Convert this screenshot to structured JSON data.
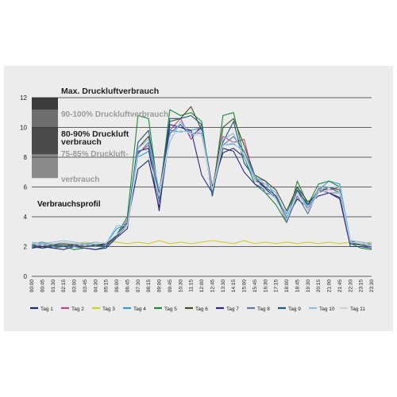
{
  "chart_data": {
    "type": "line",
    "ylabel_zones": [
      {
        "label": "Max. Druckluftverbrauch",
        "y_from": 10,
        "y_to": 12,
        "color": "#3a3a3a"
      },
      {
        "label": "90-100% Druckluftverbrauch",
        "y_from": 10,
        "y_to": 12,
        "color": "#8a8a8a"
      },
      {
        "label": "80-90% Druckluft verbrauch",
        "y_from": 8,
        "y_to": 10,
        "color": "#5a5a5a"
      },
      {
        "label": "75-85% Druckluft- verbrauch",
        "y_from": 6,
        "y_to": 8,
        "color": "#7d7d7d"
      }
    ],
    "zone_labels": {
      "max": "Max. Druckluftverbrauch",
      "z90": "90-100% Druckluftverbrauch",
      "z80a": "80-90% Druckluft",
      "z80b": "verbrauch",
      "z75a": "75-85% Druckluft-",
      "z75b": "verbrauch"
    },
    "profile_label": "Verbrauchsprofil",
    "ylim": [
      0,
      12
    ],
    "yticks": [
      0,
      2,
      4,
      6,
      8,
      10,
      12
    ],
    "grid": true,
    "categories": [
      "00:00",
      "00:45",
      "01:30",
      "02:15",
      "03:00",
      "03:45",
      "04:30",
      "05:15",
      "06:00",
      "06:45",
      "07:30",
      "08:15",
      "09:00",
      "09:45",
      "10:30",
      "11:15",
      "12:00",
      "12:45",
      "13:30",
      "14:15",
      "15:00",
      "15:45",
      "16:30",
      "17:15",
      "18:00",
      "18:45",
      "19:30",
      "20:15",
      "21:00",
      "21:45",
      "22:30",
      "23:15",
      "23:30"
    ],
    "legend_position": "bottom",
    "series": [
      {
        "name": "Tag 1",
        "color": "#1f2a6b",
        "values": [
          2.0,
          1.9,
          2.0,
          2.1,
          2.0,
          2.1,
          2.0,
          2.2,
          2.6,
          3.6,
          7.2,
          7.8,
          4.6,
          9.6,
          10.2,
          9.4,
          10.0,
          6.0,
          8.3,
          8.6,
          8.0,
          6.6,
          5.9,
          5.2,
          3.9,
          5.2,
          4.6,
          5.8,
          5.6,
          5.3,
          2.4,
          2.1,
          2.0
        ]
      },
      {
        "name": "Tag 2",
        "color": "#b04a8a",
        "values": [
          2.1,
          2.0,
          2.1,
          2.0,
          2.2,
          2.1,
          2.0,
          2.1,
          2.7,
          3.8,
          8.3,
          8.8,
          5.8,
          9.8,
          10.6,
          9.2,
          10.2,
          5.4,
          9.4,
          9.0,
          9.2,
          6.4,
          6.2,
          5.6,
          3.8,
          5.8,
          4.4,
          5.9,
          5.8,
          6.0,
          2.3,
          2.2,
          2.1
        ]
      },
      {
        "name": "Tag 3",
        "color": "#d4d020",
        "values": [
          2.2,
          2.3,
          2.2,
          2.3,
          2.2,
          2.3,
          2.2,
          2.3,
          2.3,
          2.2,
          2.3,
          2.2,
          2.4,
          2.2,
          2.3,
          2.2,
          2.3,
          2.4,
          2.3,
          2.2,
          2.4,
          2.2,
          2.3,
          2.2,
          2.3,
          2.2,
          2.3,
          2.2,
          2.3,
          2.2,
          2.3,
          2.2,
          2.3
        ]
      },
      {
        "name": "Tag 4",
        "color": "#3a9ad4",
        "values": [
          2.2,
          2.3,
          2.1,
          2.3,
          2.2,
          2.1,
          2.3,
          2.2,
          3.2,
          3.5,
          8.0,
          8.4,
          5.6,
          9.8,
          9.7,
          9.8,
          10.0,
          5.8,
          8.8,
          8.9,
          8.4,
          6.6,
          6.4,
          5.3,
          4.2,
          6.0,
          4.6,
          5.8,
          6.4,
          6.2,
          2.4,
          2.3,
          2.2
        ]
      },
      {
        "name": "Tag 5",
        "color": "#1c8a3a",
        "values": [
          1.9,
          2.0,
          1.9,
          2.0,
          1.8,
          1.9,
          1.8,
          2.0,
          2.8,
          4.0,
          10.8,
          10.6,
          5.2,
          11.2,
          10.8,
          11.0,
          10.4,
          5.4,
          10.8,
          11.0,
          8.0,
          6.2,
          5.6,
          4.8,
          3.6,
          6.4,
          4.8,
          6.2,
          6.4,
          6.0,
          2.2,
          1.9,
          1.8
        ]
      },
      {
        "name": "Tag 6",
        "color": "#4a4a2a",
        "values": [
          2.1,
          2.0,
          2.1,
          2.2,
          2.1,
          2.0,
          2.1,
          2.2,
          2.7,
          3.4,
          8.6,
          9.4,
          5.6,
          10.4,
          10.6,
          11.4,
          9.8,
          5.8,
          10.0,
          10.6,
          8.8,
          6.8,
          6.4,
          5.8,
          4.4,
          6.0,
          5.0,
          5.6,
          6.0,
          5.8,
          2.3,
          2.1,
          2.0
        ]
      },
      {
        "name": "Tag 7",
        "color": "#2a2a8a",
        "values": [
          1.9,
          2.0,
          1.9,
          1.8,
          2.0,
          1.9,
          1.8,
          1.9,
          2.6,
          3.2,
          8.4,
          8.6,
          4.4,
          10.2,
          10.0,
          9.8,
          6.8,
          5.6,
          8.6,
          8.4,
          7.0,
          6.2,
          5.8,
          5.2,
          3.8,
          5.8,
          4.8,
          5.4,
          5.6,
          5.2,
          2.0,
          2.0,
          1.9
        ]
      },
      {
        "name": "Tag 8",
        "color": "#5a7aa0",
        "values": [
          2.0,
          2.1,
          2.0,
          2.1,
          2.0,
          2.1,
          2.0,
          2.1,
          2.6,
          3.6,
          8.2,
          9.0,
          5.0,
          9.6,
          10.2,
          9.6,
          9.6,
          5.6,
          8.8,
          9.4,
          8.4,
          6.8,
          5.6,
          5.4,
          3.6,
          5.4,
          4.2,
          5.8,
          5.6,
          5.6,
          2.2,
          2.1,
          2.0
        ]
      },
      {
        "name": "Tag 9",
        "color": "#1a5a7a",
        "values": [
          2.1,
          2.2,
          2.1,
          2.0,
          2.1,
          2.2,
          2.1,
          2.0,
          2.8,
          3.6,
          9.0,
          9.8,
          5.4,
          10.6,
          10.6,
          10.8,
          10.2,
          5.4,
          9.0,
          10.4,
          7.6,
          6.6,
          6.0,
          5.4,
          3.8,
          5.8,
          4.8,
          5.8,
          6.0,
          5.6,
          2.2,
          2.1,
          2.2
        ]
      },
      {
        "name": "Tag 10",
        "color": "#8ac0e8",
        "values": [
          2.3,
          2.2,
          2.3,
          2.4,
          2.3,
          2.2,
          2.3,
          2.2,
          3.4,
          3.4,
          8.6,
          9.2,
          5.8,
          9.0,
          10.4,
          9.4,
          9.8,
          5.8,
          9.2,
          9.6,
          8.0,
          6.6,
          6.2,
          5.6,
          4.0,
          5.6,
          4.6,
          5.8,
          6.0,
          6.0,
          2.4,
          2.3,
          2.2
        ]
      },
      {
        "name": "Tag 11",
        "color": "#d0d4da",
        "values": [
          2.2,
          2.1,
          2.2,
          2.3,
          2.2,
          2.1,
          2.2,
          2.3,
          2.8,
          3.4,
          8.0,
          8.0,
          5.4,
          9.4,
          9.8,
          9.6,
          9.4,
          5.8,
          8.8,
          9.0,
          8.2,
          6.4,
          5.8,
          5.2,
          3.8,
          5.6,
          4.4,
          5.6,
          5.8,
          5.6,
          2.3,
          2.2,
          2.1
        ]
      }
    ]
  }
}
